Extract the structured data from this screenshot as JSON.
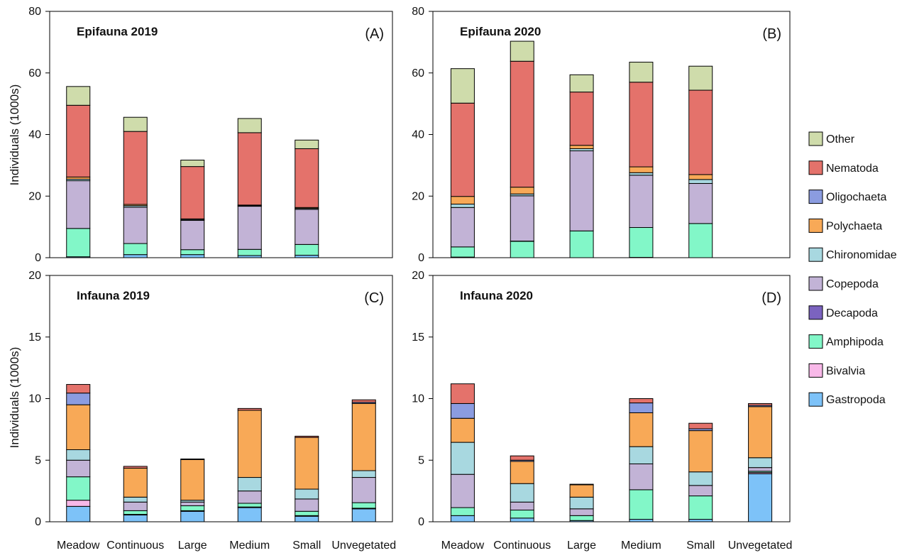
{
  "figure": {
    "ylabel": "Individuals (1000s)",
    "categories": [
      "Meadow",
      "Continuous",
      "Large",
      "Medium",
      "Small",
      "Unvegetated"
    ]
  },
  "legend": {
    "placement": "right",
    "items": [
      {
        "key": "other",
        "label": "Other",
        "color": "#cfdcab"
      },
      {
        "key": "nematoda",
        "label": "Nematoda",
        "color": "#e4726b"
      },
      {
        "key": "oligochaeta",
        "label": "Oligochaeta",
        "color": "#8b9ce0"
      },
      {
        "key": "polychaeta",
        "label": "Polychaeta",
        "color": "#f8a957"
      },
      {
        "key": "chironomidae",
        "label": "Chironomidae",
        "color": "#a8d8e0"
      },
      {
        "key": "copepoda",
        "label": "Copepoda",
        "color": "#c2b3d6"
      },
      {
        "key": "decapoda",
        "label": "Decapoda",
        "color": "#7b63bf"
      },
      {
        "key": "amphipoda",
        "label": "Amphipoda",
        "color": "#82f7c8"
      },
      {
        "key": "bivalvia",
        "label": "Bivalvia",
        "color": "#f8b8e8"
      },
      {
        "key": "gastropoda",
        "label": "Gastropoda",
        "color": "#7dc2f8"
      }
    ]
  },
  "chart_data": [
    {
      "type": "bar",
      "stacked": true,
      "title": "Epifauna 2019",
      "panel_label": "(A)",
      "ylim": [
        0,
        80
      ],
      "yticks": [
        0,
        20,
        40,
        60,
        80
      ],
      "categories": [
        "Meadow",
        "Continuous",
        "Large",
        "Medium",
        "Small",
        "Unvegetated"
      ],
      "series": [
        {
          "name": "Gastropoda",
          "values": [
            0.3,
            1.0,
            1.0,
            0.7,
            0.8,
            0
          ]
        },
        {
          "name": "Bivalvia",
          "values": [
            0,
            0,
            0,
            0,
            0,
            0
          ]
        },
        {
          "name": "Amphipoda",
          "values": [
            9.2,
            3.6,
            1.6,
            2.0,
            3.5,
            0
          ]
        },
        {
          "name": "Decapoda",
          "values": [
            0,
            0,
            0,
            0,
            0,
            0
          ]
        },
        {
          "name": "Copepoda",
          "values": [
            15.5,
            11.8,
            9.5,
            14.0,
            11.4,
            0
          ]
        },
        {
          "name": "Chironomidae",
          "values": [
            0.5,
            0.5,
            0.3,
            0.2,
            0.3,
            0
          ]
        },
        {
          "name": "Polychaeta",
          "values": [
            0.7,
            0.4,
            0.2,
            0.2,
            0.3,
            0
          ]
        },
        {
          "name": "Oligochaeta",
          "values": [
            0,
            0,
            0,
            0,
            0,
            0
          ]
        },
        {
          "name": "Nematoda",
          "values": [
            23.3,
            23.7,
            17.0,
            23.5,
            19.1,
            0
          ]
        },
        {
          "name": "Other",
          "values": [
            6.1,
            4.6,
            2.1,
            4.6,
            2.8,
            0
          ]
        }
      ]
    },
    {
      "type": "bar",
      "stacked": true,
      "title": "Epifauna 2020",
      "panel_label": "(B)",
      "ylim": [
        0,
        80
      ],
      "yticks": [
        0,
        20,
        40,
        60,
        80
      ],
      "categories": [
        "Meadow",
        "Continuous",
        "Large",
        "Medium",
        "Small",
        "Unvegetated"
      ],
      "series": [
        {
          "name": "Gastropoda",
          "values": [
            0.2,
            0,
            0,
            0.1,
            0,
            0
          ]
        },
        {
          "name": "Bivalvia",
          "values": [
            0,
            0,
            0,
            0,
            0,
            0
          ]
        },
        {
          "name": "Amphipoda",
          "values": [
            3.3,
            5.3,
            8.7,
            9.7,
            11.1,
            0
          ]
        },
        {
          "name": "Decapoda",
          "values": [
            0,
            0.1,
            0,
            0,
            0,
            0
          ]
        },
        {
          "name": "Copepoda",
          "values": [
            12.8,
            14.7,
            26.0,
            17.0,
            13.0,
            0
          ]
        },
        {
          "name": "Chironomidae",
          "values": [
            1.1,
            0.6,
            0.7,
            0.8,
            1.3,
            0
          ]
        },
        {
          "name": "Polychaeta",
          "values": [
            2.5,
            2.2,
            1.1,
            1.9,
            1.6,
            0
          ]
        },
        {
          "name": "Oligochaeta",
          "values": [
            0,
            0,
            0,
            0,
            0,
            0
          ]
        },
        {
          "name": "Nematoda",
          "values": [
            30.3,
            40.9,
            17.3,
            27.5,
            27.4,
            0
          ]
        },
        {
          "name": "Other",
          "values": [
            11.2,
            6.5,
            5.6,
            6.5,
            7.8,
            0
          ]
        }
      ]
    },
    {
      "type": "bar",
      "stacked": true,
      "title": "Infauna 2019",
      "panel_label": "(C)",
      "ylim": [
        0,
        20
      ],
      "yticks": [
        0,
        5,
        10,
        15,
        20
      ],
      "categories": [
        "Meadow",
        "Continuous",
        "Large",
        "Medium",
        "Small",
        "Unvegetated"
      ],
      "series": [
        {
          "name": "Gastropoda",
          "values": [
            1.25,
            0.55,
            0.85,
            1.15,
            0.45,
            1.05
          ]
        },
        {
          "name": "Bivalvia",
          "values": [
            0.5,
            0.05,
            0.05,
            0.05,
            0.05,
            0.05
          ]
        },
        {
          "name": "Amphipoda",
          "values": [
            1.9,
            0.3,
            0.4,
            0.3,
            0.35,
            0.45
          ]
        },
        {
          "name": "Decapoda",
          "values": [
            0,
            0,
            0,
            0,
            0,
            0
          ]
        },
        {
          "name": "Copepoda",
          "values": [
            1.35,
            0.7,
            0.3,
            1.0,
            1.0,
            2.05
          ]
        },
        {
          "name": "Chironomidae",
          "values": [
            0.85,
            0.4,
            0.15,
            1.1,
            0.8,
            0.55
          ]
        },
        {
          "name": "Polychaeta",
          "values": [
            3.65,
            2.35,
            3.3,
            5.45,
            4.2,
            5.45
          ]
        },
        {
          "name": "Oligochaeta",
          "values": [
            0.95,
            0,
            0,
            0,
            0,
            0.1
          ]
        },
        {
          "name": "Nematoda",
          "values": [
            0.7,
            0.15,
            0.05,
            0.15,
            0.1,
            0.2
          ]
        },
        {
          "name": "Other",
          "values": [
            0,
            0,
            0,
            0,
            0,
            0
          ]
        }
      ]
    },
    {
      "type": "bar",
      "stacked": true,
      "title": "Infauna 2020",
      "panel_label": "(D)",
      "ylim": [
        0,
        20
      ],
      "yticks": [
        0,
        5,
        10,
        15,
        20
      ],
      "categories": [
        "Meadow",
        "Continuous",
        "Large",
        "Medium",
        "Small",
        "Unvegetated"
      ],
      "series": [
        {
          "name": "Gastropoda",
          "values": [
            0.5,
            0.3,
            0.1,
            0.2,
            0.2,
            3.9
          ]
        },
        {
          "name": "Bivalvia",
          "values": [
            0,
            0,
            0,
            0,
            0,
            0.1
          ]
        },
        {
          "name": "Amphipoda",
          "values": [
            0.65,
            0.65,
            0.4,
            2.4,
            1.9,
            0.1
          ]
        },
        {
          "name": "Decapoda",
          "values": [
            0,
            0,
            0,
            0,
            0,
            0
          ]
        },
        {
          "name": "Copepoda",
          "values": [
            2.7,
            0.65,
            0.55,
            2.1,
            0.85,
            0.3
          ]
        },
        {
          "name": "Chironomidae",
          "values": [
            2.6,
            1.5,
            0.95,
            1.4,
            1.1,
            0.8
          ]
        },
        {
          "name": "Polychaeta",
          "values": [
            1.95,
            1.8,
            1.0,
            2.75,
            3.35,
            4.15
          ]
        },
        {
          "name": "Oligochaeta",
          "values": [
            1.2,
            0.1,
            0,
            0.8,
            0.15,
            0.1
          ]
        },
        {
          "name": "Nematoda",
          "values": [
            1.6,
            0.35,
            0.05,
            0.35,
            0.45,
            0.15
          ]
        },
        {
          "name": "Other",
          "values": [
            0,
            0,
            0,
            0,
            0,
            0
          ]
        }
      ]
    }
  ]
}
